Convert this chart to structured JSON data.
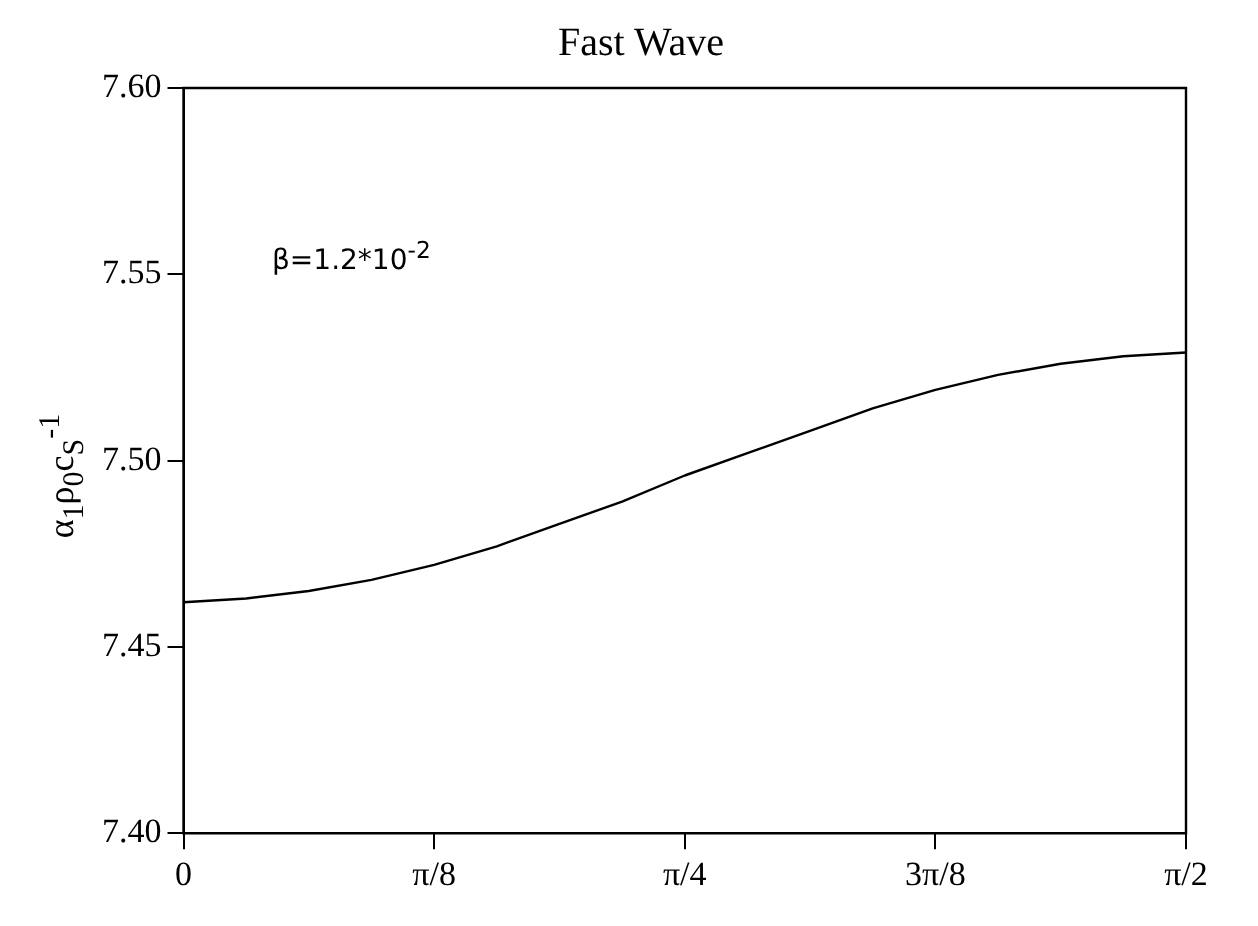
{
  "chart_data": {
    "type": "line",
    "title": "Fast Wave",
    "ylabel": "α$_{1}$ρ$_{0}$c$_{S}$$^{-1}$",
    "annotations": [
      "β=1.2*10$^{-2}$"
    ],
    "x": [
      0,
      0.0982,
      0.1963,
      0.2945,
      0.3927,
      0.4909,
      0.589,
      0.6872,
      0.7854,
      0.8836,
      0.9817,
      1.0799,
      1.1781,
      1.2763,
      1.3744,
      1.4726,
      1.5708
    ],
    "series": [
      {
        "color": "#000000",
        "values": [
          7.462,
          7.463,
          7.465,
          7.468,
          7.472,
          7.477,
          7.483,
          7.489,
          7.496,
          7.502,
          7.508,
          7.514,
          7.519,
          7.523,
          7.526,
          7.528,
          7.529
        ]
      }
    ],
    "xlim": [
      0,
      1.5708
    ],
    "xticks": [
      {
        "value": 0,
        "label": "0"
      },
      {
        "value": 0.3927,
        "label": "π/8"
      },
      {
        "value": 0.7854,
        "label": "π/4"
      },
      {
        "value": 1.1781,
        "label": "3π/8"
      },
      {
        "value": 1.5708,
        "label": "π/2"
      }
    ],
    "ylim": [
      7.4,
      7.6
    ],
    "yticks": [
      {
        "value": 7.4,
        "label": "7.40"
      },
      {
        "value": 7.45,
        "label": "7.45"
      },
      {
        "value": 7.5,
        "label": "7.50"
      },
      {
        "value": 7.55,
        "label": "7.55"
      },
      {
        "value": 7.6,
        "label": "7.60"
      }
    ],
    "legend": false,
    "marker": "none",
    "line_style": "solid"
  }
}
